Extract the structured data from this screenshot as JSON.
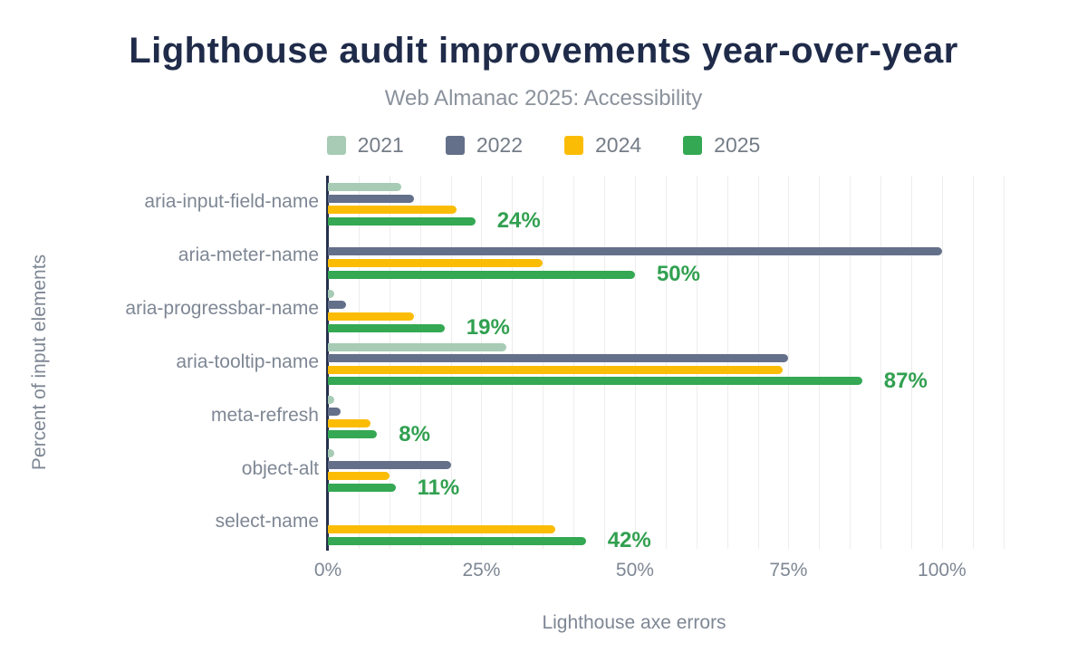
{
  "chart_data": {
    "type": "bar",
    "orientation": "horizontal",
    "title": "Lighthouse audit improvements year-over-year",
    "subtitle": "Web Almanac 2025: Accessibility",
    "xlabel": "Lighthouse axe errors",
    "ylabel": "Percent of input elements",
    "categories": [
      "aria-input-field-name",
      "aria-meter-name",
      "aria-progressbar-name",
      "aria-tooltip-name",
      "meta-refresh",
      "object-alt",
      "select-name"
    ],
    "series": [
      {
        "name": "2021",
        "color": "#a7cbb4",
        "values": [
          12,
          null,
          1,
          29,
          1,
          1,
          null
        ]
      },
      {
        "name": "2022",
        "color": "#64708a",
        "values": [
          14,
          100,
          3,
          75,
          2,
          20,
          null
        ]
      },
      {
        "name": "2024",
        "color": "#fbbc05",
        "values": [
          21,
          35,
          14,
          74,
          7,
          10,
          37
        ]
      },
      {
        "name": "2025",
        "color": "#34a853",
        "values": [
          24,
          50,
          19,
          87,
          8,
          11,
          42
        ]
      }
    ],
    "value_labels": {
      "series": "2025",
      "values": [
        "24%",
        "50%",
        "19%",
        "87%",
        "8%",
        "11%",
        "42%"
      ]
    },
    "x_ticks": [
      {
        "value": 0,
        "label": "0%"
      },
      {
        "value": 25,
        "label": "25%"
      },
      {
        "value": 50,
        "label": "50%"
      },
      {
        "value": 75,
        "label": "75%"
      },
      {
        "value": 100,
        "label": "100%"
      }
    ],
    "xlim": [
      0,
      113
    ],
    "grid": {
      "show": true,
      "step": 5,
      "color": "#ededed"
    },
    "legend_position": "top"
  },
  "colors": {
    "title": "#1f2b49",
    "subtitle": "#8b929c",
    "axis_text": "#7e8794",
    "axis_line": "#24304e",
    "value_label": "#31a050"
  }
}
